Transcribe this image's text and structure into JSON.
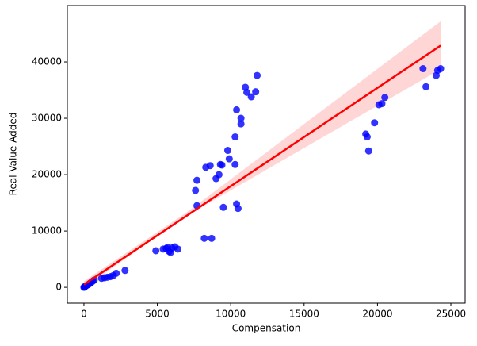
{
  "chart_data": {
    "type": "scatter",
    "xlabel": "Compensation",
    "ylabel": "Real Value Added",
    "x": [
      0,
      20,
      50,
      80,
      120,
      200,
      300,
      400,
      500,
      600,
      700,
      1200,
      1400,
      1600,
      1800,
      2000,
      2200,
      2800,
      4900,
      5400,
      5600,
      5800,
      5900,
      6000,
      6200,
      6400,
      5700,
      7600,
      7700,
      7700,
      8200,
      8300,
      8600,
      8700,
      9000,
      9200,
      9300,
      9400,
      9500,
      9800,
      9900,
      10300,
      10400,
      10300,
      10400,
      10500,
      10700,
      10700,
      11000,
      11100,
      11400,
      11700,
      11800,
      19200,
      19300,
      19400,
      19800,
      20100,
      20300,
      20500,
      23100,
      23300,
      24000,
      24100,
      24300
    ],
    "values": [
      0,
      50,
      100,
      150,
      250,
      350,
      500,
      700,
      900,
      1100,
      1300,
      1600,
      1700,
      1800,
      1900,
      2100,
      2500,
      3000,
      6500,
      6800,
      6900,
      6400,
      6200,
      7000,
      7200,
      6800,
      7100,
      17200,
      19000,
      14500,
      8700,
      21300,
      21600,
      8700,
      19300,
      20000,
      21800,
      21700,
      14200,
      24300,
      22800,
      26700,
      31500,
      21800,
      14800,
      14000,
      29000,
      30000,
      35500,
      34600,
      33800,
      34700,
      37600,
      27200,
      26700,
      24200,
      29200,
      32400,
      32600,
      33700,
      38800,
      35600,
      37600,
      38500,
      38800
    ],
    "color": "#0000ff",
    "line_color": "#ff0000",
    "band_color": "#ffcccc",
    "regression": {
      "x": [
        0,
        24300
      ],
      "y": [
        500,
        42900
      ]
    },
    "band": {
      "x": [
        0,
        7000,
        24300
      ],
      "upper": [
        1100,
        13300,
        47200
      ],
      "lower": [
        -100,
        12700,
        38700
      ]
    },
    "xlim": [
      -1130,
      25970
    ],
    "ylim": [
      -2800,
      50000
    ],
    "xticks": [
      0,
      5000,
      10000,
      15000,
      20000,
      25000
    ],
    "yticks": [
      0,
      10000,
      20000,
      30000,
      40000
    ]
  }
}
